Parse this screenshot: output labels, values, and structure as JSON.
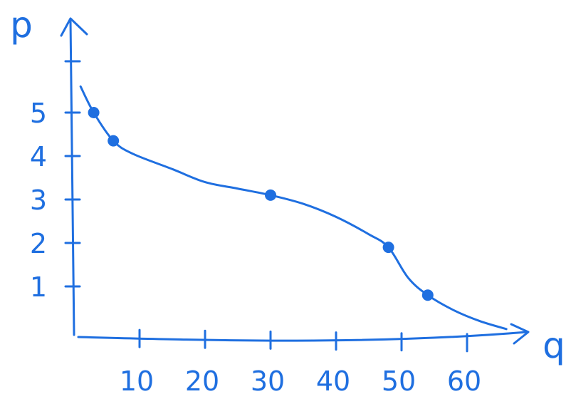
{
  "chart_data": {
    "type": "line",
    "xlabel": "q",
    "ylabel": "p",
    "x_ticks": [
      10,
      20,
      30,
      40,
      50,
      60
    ],
    "y_ticks": [
      1,
      2,
      3,
      4,
      5
    ],
    "curve": [
      {
        "x": 1,
        "y": 5.6
      },
      {
        "x": 3,
        "y": 5.0
      },
      {
        "x": 6,
        "y": 4.35
      },
      {
        "x": 9,
        "y": 4.05
      },
      {
        "x": 15,
        "y": 3.7
      },
      {
        "x": 20,
        "y": 3.4
      },
      {
        "x": 25,
        "y": 3.25
      },
      {
        "x": 30,
        "y": 3.1
      },
      {
        "x": 35,
        "y": 2.9
      },
      {
        "x": 40,
        "y": 2.6
      },
      {
        "x": 45,
        "y": 2.2
      },
      {
        "x": 48,
        "y": 1.9
      },
      {
        "x": 51,
        "y": 1.2
      },
      {
        "x": 54,
        "y": 0.8
      },
      {
        "x": 58,
        "y": 0.45
      },
      {
        "x": 62,
        "y": 0.2
      },
      {
        "x": 66,
        "y": 0.02
      }
    ],
    "points": [
      {
        "x": 3,
        "y": 5.0
      },
      {
        "x": 6,
        "y": 4.35
      },
      {
        "x": 30,
        "y": 3.1
      },
      {
        "x": 48,
        "y": 1.9
      },
      {
        "x": 54,
        "y": 0.8
      }
    ],
    "xlim": [
      0,
      70
    ],
    "ylim": [
      0,
      6
    ],
    "grid": false,
    "color": "#1f6fe0"
  }
}
